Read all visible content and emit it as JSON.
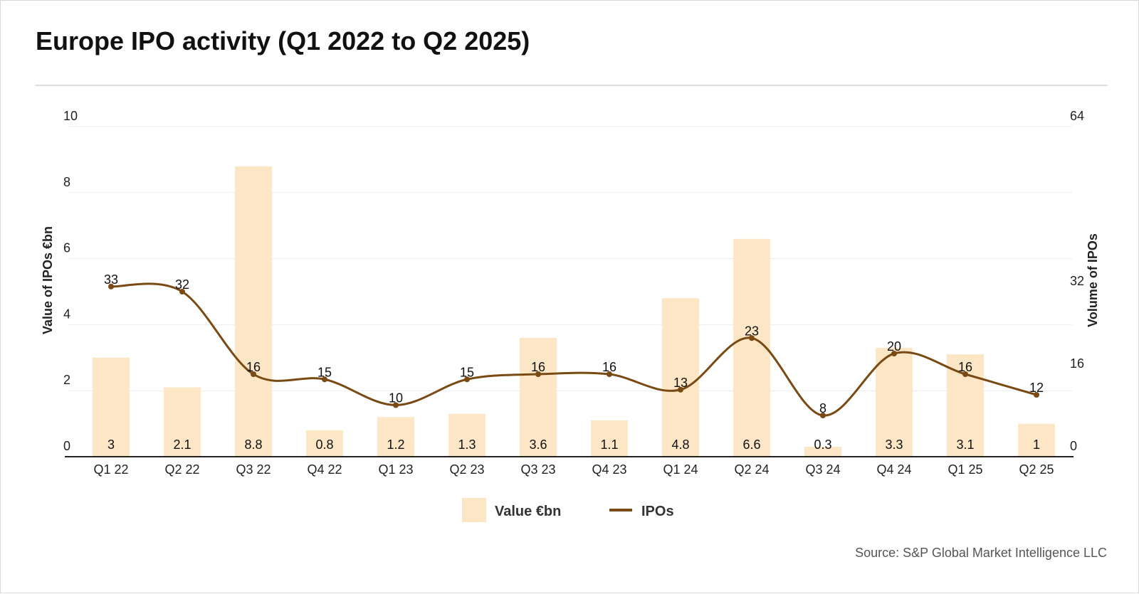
{
  "title": "Europe IPO activity (Q1 2022 to Q2 2025)",
  "source": "Source: S&P Global Market Intelligence LLC",
  "colors": {
    "bar": "#fce6c6",
    "line": "#7a4a14",
    "grid": "#ececec",
    "axis": "#222222"
  },
  "chart_data": {
    "type": "bar",
    "categories": [
      "Q1 22",
      "Q2 22",
      "Q3 22",
      "Q4 22",
      "Q1 23",
      "Q2 23",
      "Q3 23",
      "Q4 23",
      "Q1 24",
      "Q2 24",
      "Q3 24",
      "Q4 24",
      "Q1 25",
      "Q2 25"
    ],
    "series": [
      {
        "name": "Value €bn",
        "type": "bar",
        "axis": "left",
        "values": [
          3,
          2.1,
          8.8,
          0.8,
          1.2,
          1.3,
          3.6,
          1.1,
          4.8,
          6.6,
          0.3,
          3.3,
          3.1,
          1
        ]
      },
      {
        "name": "IPOs",
        "type": "line",
        "axis": "right",
        "values": [
          33,
          32,
          16,
          15,
          10,
          15,
          16,
          16,
          13,
          23,
          8,
          20,
          16,
          12
        ]
      }
    ],
    "ylabel_left": "Value of IPOs €bn",
    "ylabel_right": "Volume of IPOs",
    "ylim_left": [
      0,
      10
    ],
    "yticks_left": [
      0,
      2,
      4,
      6,
      8,
      10
    ],
    "ylim_right": [
      0,
      64
    ],
    "yticks_right": [
      0,
      16,
      32,
      64
    ],
    "grid": true,
    "legend": "bottom-center"
  }
}
